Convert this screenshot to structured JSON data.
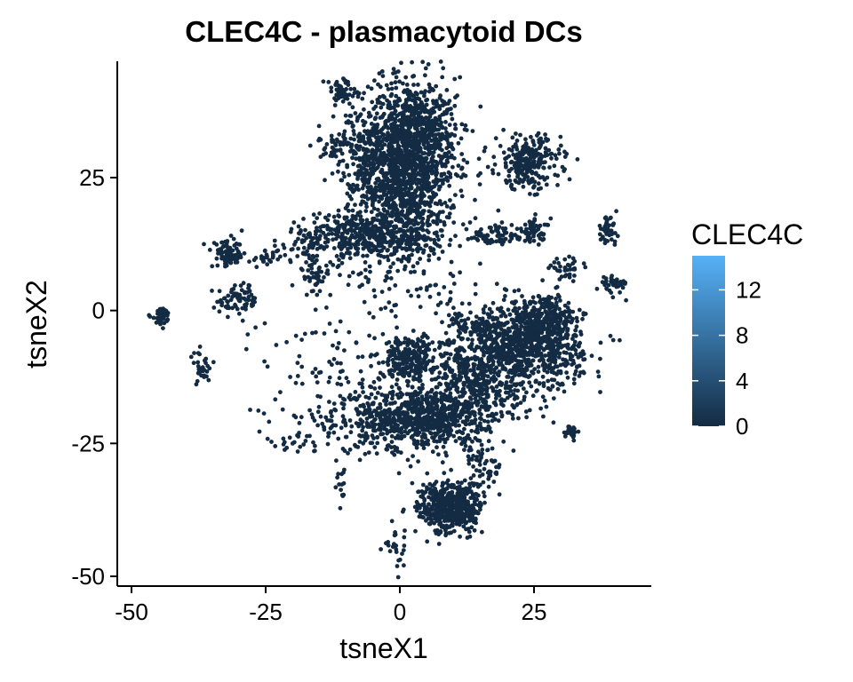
{
  "chart_data": {
    "type": "scatter",
    "title": "CLEC4C - plasmacytoid DCs",
    "xlabel": "tsneX1",
    "ylabel": "tsneX2",
    "xlim": [
      -52,
      47
    ],
    "ylim": [
      -52,
      47
    ],
    "xticks": [
      -50,
      -25,
      0,
      25
    ],
    "xtick_labels": [
      "-50",
      "-25",
      "0",
      "25"
    ],
    "yticks": [
      -50,
      -25,
      0,
      25
    ],
    "ytick_labels": [
      "-50",
      "-25",
      "0",
      "25"
    ],
    "grid": false,
    "point_color": "#132B43",
    "legend": {
      "title": "CLEC4C",
      "placement": "right",
      "type": "colorbar",
      "range": [
        0,
        15
      ],
      "ticks": [
        0,
        4,
        8,
        12
      ],
      "tick_labels": [
        "0",
        "4",
        "8",
        "12"
      ],
      "color_low": "#132B43",
      "color_high": "#56B1F7"
    },
    "clusters": [
      {
        "cx": 1.5,
        "cy": 27,
        "sx": 4.5,
        "sy": 8.5,
        "n": 1400
      },
      {
        "cx": 3.5,
        "cy": 34,
        "sx": 3.5,
        "sy": 3,
        "n": 250
      },
      {
        "cx": -5,
        "cy": 26,
        "sx": 3,
        "sy": 6,
        "n": 180
      },
      {
        "cx": -9,
        "cy": 31,
        "sx": 3,
        "sy": 2,
        "n": 100
      },
      {
        "cx": -7,
        "cy": 14,
        "sx": 7,
        "sy": 2.2,
        "n": 420
      },
      {
        "cx": -11,
        "cy": 41,
        "sx": 1.5,
        "sy": 1.3,
        "n": 60
      },
      {
        "cx": 24,
        "cy": 28,
        "sx": 3,
        "sy": 2.5,
        "n": 260
      },
      {
        "cx": 18,
        "cy": 14,
        "sx": 3.5,
        "sy": 1,
        "n": 70
      },
      {
        "cx": 25,
        "cy": 15,
        "sx": 1.5,
        "sy": 1.2,
        "n": 50
      },
      {
        "cx": 31,
        "cy": 8,
        "sx": 1.5,
        "sy": 0.8,
        "n": 40
      },
      {
        "cx": 38.5,
        "cy": 15,
        "sx": 1,
        "sy": 1.3,
        "n": 40
      },
      {
        "cx": 40,
        "cy": 5,
        "sx": 1.3,
        "sy": 0.9,
        "n": 40
      },
      {
        "cx": -32,
        "cy": 10.5,
        "sx": 1.5,
        "sy": 1.2,
        "n": 80
      },
      {
        "cx": -25,
        "cy": 10,
        "sx": 1.5,
        "sy": 0.8,
        "n": 25
      },
      {
        "cx": -30,
        "cy": 2,
        "sx": 2,
        "sy": 1.5,
        "n": 70
      },
      {
        "cx": -16,
        "cy": 7,
        "sx": 1.5,
        "sy": 2,
        "n": 50
      },
      {
        "cx": -44.5,
        "cy": -1,
        "sx": 0.9,
        "sy": 0.9,
        "n": 40
      },
      {
        "cx": -37,
        "cy": -11,
        "sx": 1,
        "sy": 1.5,
        "n": 30
      },
      {
        "cx": 23,
        "cy": -7,
        "sx": 5.5,
        "sy": 4,
        "n": 850
      },
      {
        "cx": 27,
        "cy": -2,
        "sx": 3,
        "sy": 2.5,
        "n": 250
      },
      {
        "cx": 2,
        "cy": -9,
        "sx": 2.5,
        "sy": 2,
        "n": 250
      },
      {
        "cx": 4,
        "cy": -20,
        "sx": 6,
        "sy": 3,
        "n": 750
      },
      {
        "cx": 15,
        "cy": -15,
        "sx": 4,
        "sy": 3,
        "n": 200
      },
      {
        "cx": 12,
        "cy": -10,
        "sx": 3,
        "sy": 3,
        "n": 120
      },
      {
        "cx": 9.5,
        "cy": -37,
        "sx": 3,
        "sy": 2.5,
        "n": 500
      },
      {
        "cx": 16,
        "cy": -29,
        "sx": 2,
        "sy": 2.5,
        "n": 60
      },
      {
        "cx": 15,
        "cy": -3,
        "sx": 1,
        "sy": 1,
        "n": 40
      },
      {
        "cx": 11,
        "cy": -2,
        "sx": 1.2,
        "sy": 1.2,
        "n": 30
      },
      {
        "cx": 32,
        "cy": -23,
        "sx": 0.8,
        "sy": 0.7,
        "n": 25
      },
      {
        "cx": -11,
        "cy": -11,
        "sx": 8,
        "sy": 6,
        "n": 120
      },
      {
        "cx": -8,
        "cy": -22,
        "sx": 6,
        "sy": 3,
        "n": 90
      },
      {
        "cx": -11,
        "cy": -32,
        "sx": 0.6,
        "sy": 2,
        "n": 15
      },
      {
        "cx": -1,
        "cy": -45,
        "sx": 1.5,
        "sy": 2,
        "n": 25
      },
      {
        "cx": -20,
        "cy": -25,
        "sx": 3,
        "sy": 1,
        "n": 20
      },
      {
        "cx": 2,
        "cy": 3,
        "sx": 8,
        "sy": 3,
        "n": 60
      }
    ]
  }
}
